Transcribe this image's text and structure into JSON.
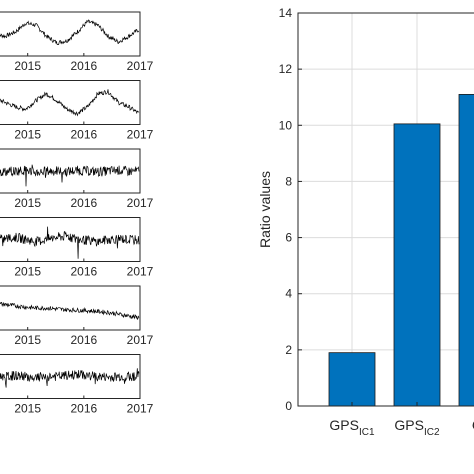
{
  "chart_data": [
    {
      "type": "line",
      "title": "",
      "xlabel": "",
      "ylabel": "",
      "x_ticks": [
        "2015",
        "2016",
        "2017"
      ],
      "xlim": [
        2014.4,
        2017.0
      ],
      "series": [
        {
          "pattern": "seasonal",
          "shape": [
            0.5,
            0.45,
            0.55,
            0.75,
            0.7,
            0.45,
            0.3,
            0.35,
            0.55,
            0.78,
            0.7,
            0.45,
            0.32,
            0.45,
            0.6
          ]
        },
        {
          "pattern": "seasonal",
          "shape": [
            0.6,
            0.5,
            0.4,
            0.35,
            0.55,
            0.7,
            0.55,
            0.35,
            0.25,
            0.4,
            0.7,
            0.75,
            0.5,
            0.4,
            0.25
          ]
        },
        {
          "pattern": "noisy",
          "shape": [
            0.5,
            0.48,
            0.5,
            0.52,
            0.47,
            0.5,
            0.5,
            0.49,
            0.51,
            0.5,
            0.48,
            0.5,
            0.52,
            0.49,
            0.5
          ]
        },
        {
          "pattern": "noisy",
          "shape": [
            0.5,
            0.52,
            0.55,
            0.5,
            0.45,
            0.5,
            0.55,
            0.58,
            0.5,
            0.48,
            0.45,
            0.5,
            0.52,
            0.5,
            0.48
          ]
        },
        {
          "pattern": "trend",
          "shape": [
            0.6,
            0.58,
            0.55,
            0.52,
            0.5,
            0.5,
            0.48,
            0.46,
            0.45,
            0.44,
            0.42,
            0.4,
            0.36,
            0.32,
            0.28
          ]
        },
        {
          "pattern": "noisy",
          "shape": [
            0.5,
            0.5,
            0.52,
            0.5,
            0.48,
            0.5,
            0.5,
            0.52,
            0.55,
            0.52,
            0.5,
            0.48,
            0.5,
            0.5,
            0.52
          ]
        }
      ]
    },
    {
      "type": "bar",
      "title": "",
      "xlabel": "",
      "ylabel": "Ratio values",
      "ylim": [
        0,
        14
      ],
      "y_ticks": [
        "0",
        "2",
        "4",
        "6",
        "8",
        "10",
        "12",
        "14"
      ],
      "grid": true,
      "bar_color": "#0072BD",
      "categories": [
        {
          "base": "GPS",
          "sub": "IC1"
        },
        {
          "base": "GPS",
          "sub": "IC2"
        },
        {
          "base": "GP",
          "sub": ""
        }
      ],
      "values": [
        1.9,
        10.05,
        11.1
      ]
    }
  ],
  "colors": {
    "bar": "#0072BD",
    "grid": "#dcdcdc",
    "axis": "#262626",
    "trace": "#000000"
  }
}
